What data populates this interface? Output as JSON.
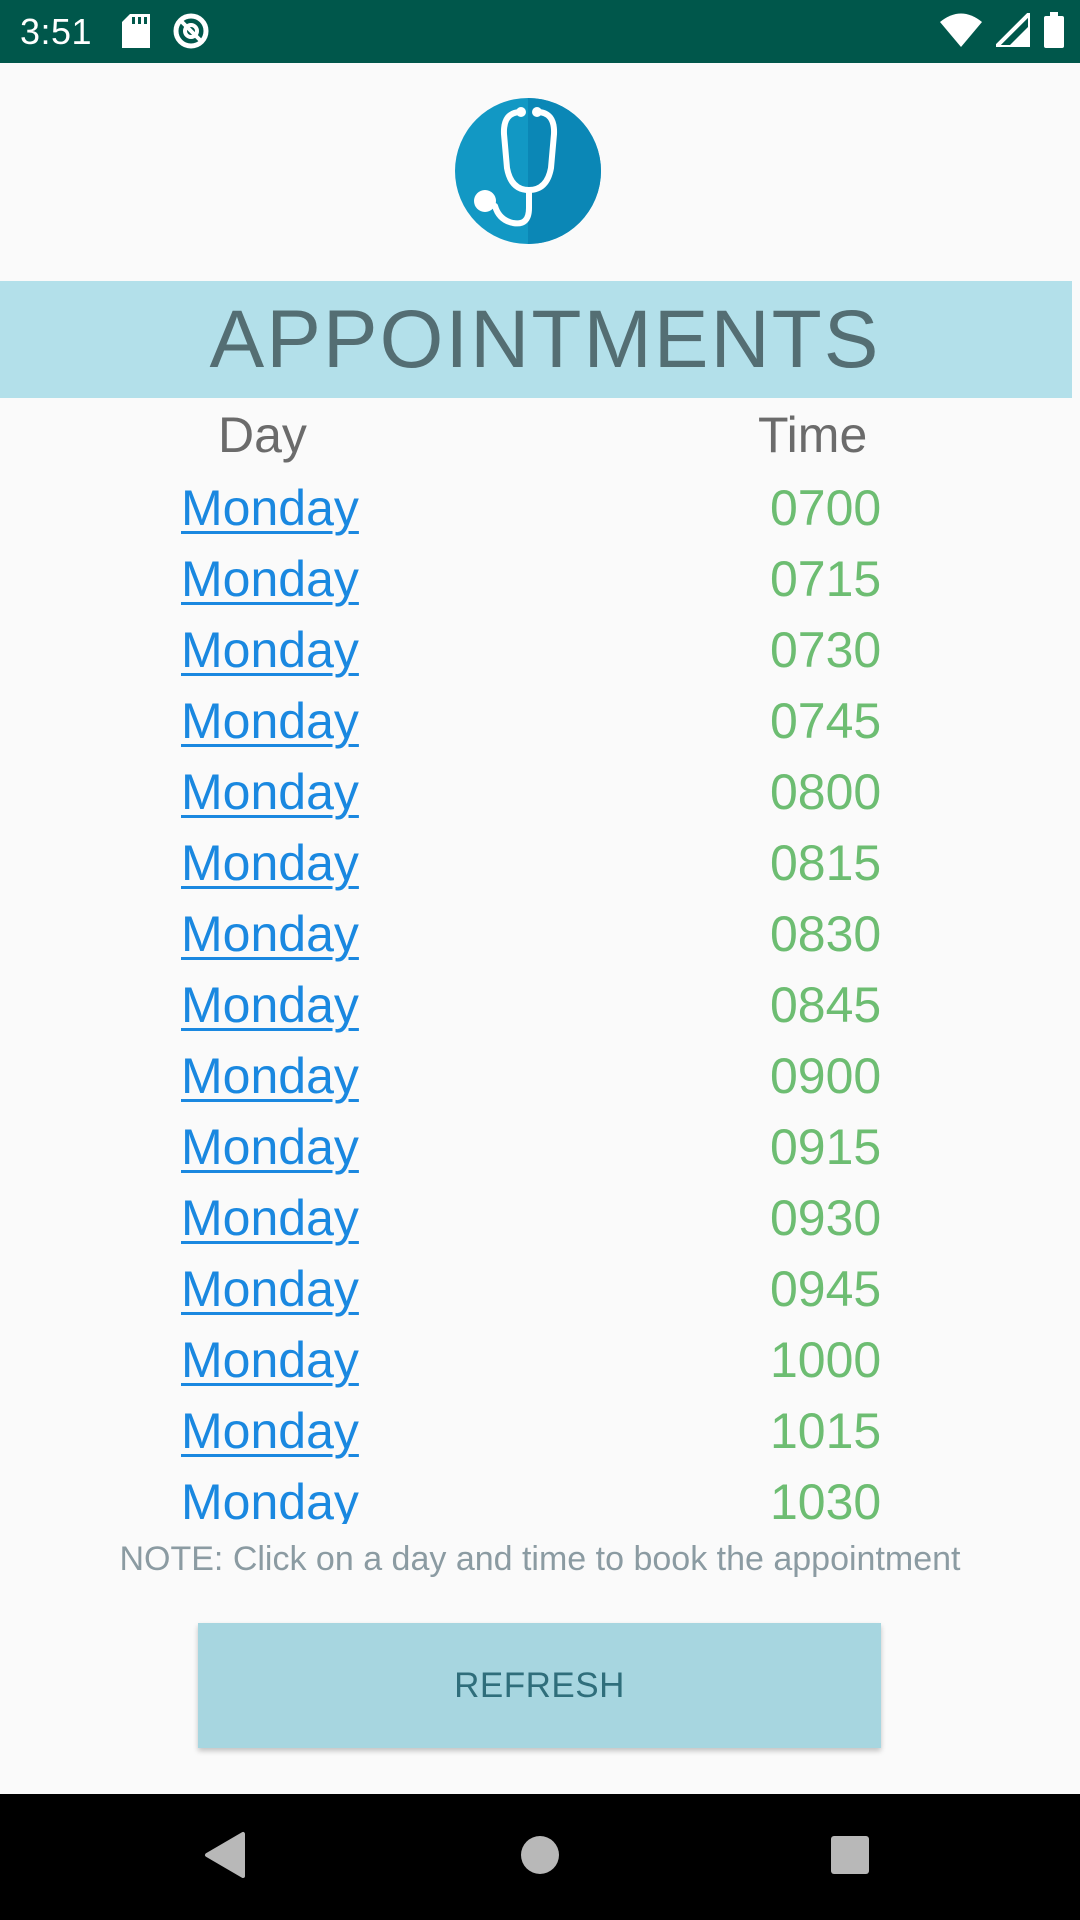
{
  "status_bar": {
    "time": "3:51",
    "icons": [
      "sd-card-icon",
      "no-disturb-icon",
      "wifi-icon",
      "signal-icon",
      "battery-icon"
    ]
  },
  "header": {
    "title": "APPOINTMENTS"
  },
  "columns": {
    "day": "Day",
    "time": "Time"
  },
  "appointments": [
    {
      "day": "Monday",
      "time": "0700"
    },
    {
      "day": "Monday",
      "time": "0715"
    },
    {
      "day": "Monday",
      "time": "0730"
    },
    {
      "day": "Monday",
      "time": "0745"
    },
    {
      "day": "Monday",
      "time": "0800"
    },
    {
      "day": "Monday",
      "time": "0815"
    },
    {
      "day": "Monday",
      "time": "0830"
    },
    {
      "day": "Monday",
      "time": "0845"
    },
    {
      "day": "Monday",
      "time": "0900"
    },
    {
      "day": "Monday",
      "time": "0915"
    },
    {
      "day": "Monday",
      "time": "0930"
    },
    {
      "day": "Monday",
      "time": "0945"
    },
    {
      "day": "Monday",
      "time": "1000"
    },
    {
      "day": "Monday",
      "time": "1015"
    },
    {
      "day": "Monday",
      "time": "1030"
    }
  ],
  "note": "NOTE: Click on a day and time to book the appointment",
  "refresh_button": {
    "label": "REFRESH"
  },
  "colors": {
    "status_bar": "#00574b",
    "banner": "#b3e0ea",
    "day_link": "#1a88e0",
    "time_text": "#6dbd72",
    "button": "#a7d6e0"
  },
  "nav_bar": {
    "icons": [
      "back-icon",
      "home-icon",
      "recents-icon"
    ]
  }
}
